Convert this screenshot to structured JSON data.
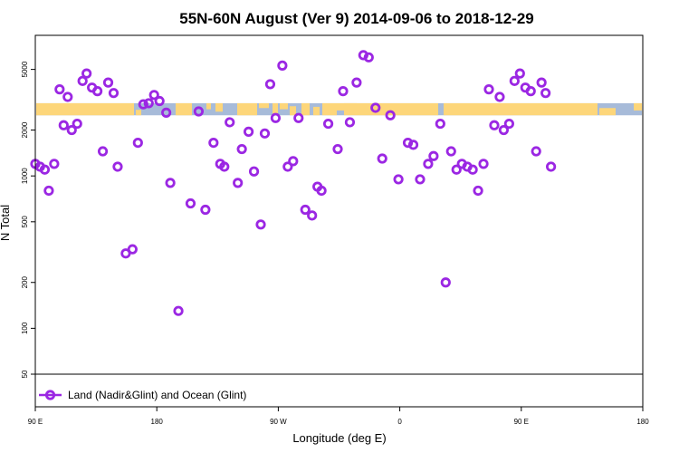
{
  "chart_data": {
    "type": "scatter",
    "title": "55N-60N August (Ver 9)   2014-09-06 to 2018-12-29",
    "xlabel": "Longitude (deg E)",
    "ylabel": "N Total",
    "x_scale": "longitude",
    "y_scale": "log",
    "xlim": [
      90,
      450
    ],
    "ylim": [
      50,
      7500
    ],
    "x_ticks": [
      {
        "value": 90,
        "label": "90 E"
      },
      {
        "value": 180,
        "label": "180"
      },
      {
        "value": 270,
        "label": "90 W"
      },
      {
        "value": 360,
        "label": "0"
      },
      {
        "value": 450,
        "label": "90 E"
      },
      {
        "value": 540,
        "label": "180"
      }
    ],
    "y_ticks": [
      {
        "value": 50,
        "label": "50"
      },
      {
        "value": 100,
        "label": "100"
      },
      {
        "value": 200,
        "label": "200"
      },
      {
        "value": 500,
        "label": "500"
      },
      {
        "value": 1000,
        "label": "1000"
      },
      {
        "value": 2000,
        "label": "2000"
      },
      {
        "value": 5000,
        "label": "5000"
      }
    ],
    "map_band": {
      "ymin": 2500,
      "ymax": 3000,
      "ocean_color": "#a7bbd9",
      "land_color": "#fdd67a"
    },
    "series": [
      {
        "name": "Land (Nadir&Glint) and Ocean (Glint)",
        "color": "#9b27e3",
        "marker": "open-circle",
        "points": [
          [
            90,
            1200
          ],
          [
            93.5,
            1150
          ],
          [
            97,
            1100
          ],
          [
            100,
            800
          ],
          [
            104,
            1200
          ],
          [
            108,
            3700
          ],
          [
            111,
            2150
          ],
          [
            114,
            3300
          ],
          [
            117,
            2000
          ],
          [
            121,
            2200
          ],
          [
            125,
            4200
          ],
          [
            128,
            4700
          ],
          [
            132,
            3800
          ],
          [
            136,
            3600
          ],
          [
            140,
            1450
          ],
          [
            144,
            4100
          ],
          [
            148,
            3500
          ],
          [
            151,
            1150
          ],
          [
            157,
            310
          ],
          [
            162,
            330
          ],
          [
            166,
            1650
          ],
          [
            170,
            2950
          ],
          [
            174,
            3000
          ],
          [
            178,
            3400
          ],
          [
            182,
            3100
          ],
          [
            187,
            2600
          ],
          [
            190,
            900
          ],
          [
            196,
            130
          ],
          [
            205,
            660
          ],
          [
            211,
            2650
          ],
          [
            216,
            600
          ],
          [
            222,
            1650
          ],
          [
            227,
            1200
          ],
          [
            230,
            1150
          ],
          [
            234,
            2250
          ],
          [
            240,
            900
          ],
          [
            243,
            1500
          ],
          [
            248,
            1950
          ],
          [
            252,
            1070
          ],
          [
            257,
            480
          ],
          [
            260,
            1900
          ],
          [
            264,
            4000
          ],
          [
            268,
            2400
          ],
          [
            273,
            5300
          ],
          [
            277,
            1150
          ],
          [
            281,
            1250
          ],
          [
            285,
            2400
          ],
          [
            290,
            600
          ],
          [
            295,
            550
          ],
          [
            299,
            850
          ],
          [
            302,
            800
          ],
          [
            307,
            2200
          ],
          [
            314,
            1500
          ],
          [
            318,
            3600
          ],
          [
            323,
            2250
          ],
          [
            328,
            4100
          ],
          [
            333,
            6200
          ],
          [
            337,
            6000
          ],
          [
            342,
            2800
          ],
          [
            347,
            1300
          ],
          [
            353,
            2500
          ],
          [
            359,
            950
          ],
          [
            366,
            1650
          ],
          [
            370,
            1600
          ],
          [
            375,
            950
          ],
          [
            381,
            1200
          ],
          [
            385,
            1350
          ],
          [
            390,
            2200
          ],
          [
            394,
            200
          ],
          [
            398,
            1450
          ],
          [
            402,
            1100
          ],
          [
            406,
            1200
          ],
          [
            410,
            1150
          ],
          [
            414,
            1100
          ],
          [
            418,
            800
          ],
          [
            422,
            1200
          ],
          [
            426,
            3700
          ],
          [
            430,
            2150
          ],
          [
            434,
            3300
          ],
          [
            437,
            2000
          ],
          [
            441,
            2200
          ],
          [
            445,
            4200
          ],
          [
            449,
            4700
          ],
          [
            453,
            3800
          ],
          [
            457,
            3600
          ],
          [
            461,
            1450
          ],
          [
            465,
            4100
          ],
          [
            468,
            3500
          ],
          [
            472,
            1150
          ]
        ]
      }
    ],
    "legend": {
      "placement": "bottom-left",
      "label": "Land (Nadir&Glint) and Ocean (Glint)"
    }
  }
}
